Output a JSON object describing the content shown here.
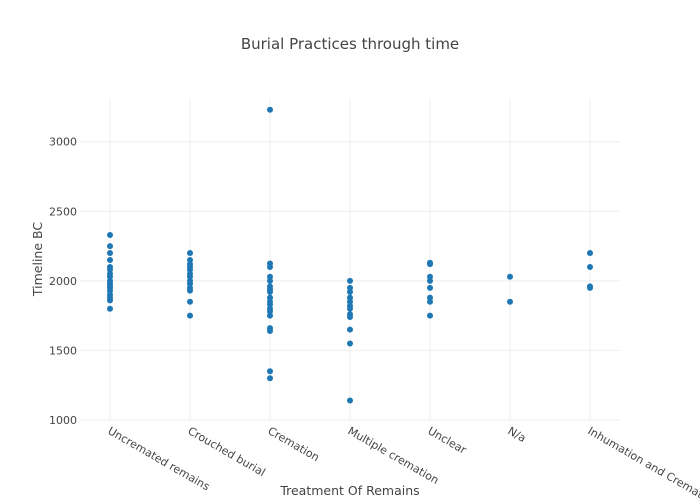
{
  "chart_data": {
    "type": "scatter",
    "title": "Burial Practices through time",
    "xlabel": "Treatment Of Remains",
    "ylabel": "Timeline BC",
    "categories": [
      "Uncremated remains",
      "Crouched burial",
      "Cremation",
      "Multiple cremation",
      "Unclear",
      "N/a",
      "Inhumation and Cremation"
    ],
    "ylim": [
      1000,
      3300
    ],
    "yticks": [
      1000,
      1500,
      2000,
      2500,
      3000
    ],
    "grid": true,
    "marker_color": "#1f77b4",
    "points": [
      {
        "x": "Uncremated remains",
        "y": 2330
      },
      {
        "x": "Uncremated remains",
        "y": 2250
      },
      {
        "x": "Uncremated remains",
        "y": 2200
      },
      {
        "x": "Uncremated remains",
        "y": 2150
      },
      {
        "x": "Uncremated remains",
        "y": 2100
      },
      {
        "x": "Uncremated remains",
        "y": 2080
      },
      {
        "x": "Uncremated remains",
        "y": 2050
      },
      {
        "x": "Uncremated remains",
        "y": 2030
      },
      {
        "x": "Uncremated remains",
        "y": 2000
      },
      {
        "x": "Uncremated remains",
        "y": 1980
      },
      {
        "x": "Uncremated remains",
        "y": 1960
      },
      {
        "x": "Uncremated remains",
        "y": 1950
      },
      {
        "x": "Uncremated remains",
        "y": 1930
      },
      {
        "x": "Uncremated remains",
        "y": 1900
      },
      {
        "x": "Uncremated remains",
        "y": 1880
      },
      {
        "x": "Uncremated remains",
        "y": 1860
      },
      {
        "x": "Uncremated remains",
        "y": 1800
      },
      {
        "x": "Crouched burial",
        "y": 2200
      },
      {
        "x": "Crouched burial",
        "y": 2150
      },
      {
        "x": "Crouched burial",
        "y": 2120
      },
      {
        "x": "Crouched burial",
        "y": 2100
      },
      {
        "x": "Crouched burial",
        "y": 2080
      },
      {
        "x": "Crouched burial",
        "y": 2050
      },
      {
        "x": "Crouched burial",
        "y": 2030
      },
      {
        "x": "Crouched burial",
        "y": 2000
      },
      {
        "x": "Crouched burial",
        "y": 1980
      },
      {
        "x": "Crouched burial",
        "y": 1950
      },
      {
        "x": "Crouched burial",
        "y": 1930
      },
      {
        "x": "Crouched burial",
        "y": 1850
      },
      {
        "x": "Crouched burial",
        "y": 1750
      },
      {
        "x": "Cremation",
        "y": 3230
      },
      {
        "x": "Cremation",
        "y": 2125
      },
      {
        "x": "Cremation",
        "y": 2100
      },
      {
        "x": "Cremation",
        "y": 2030
      },
      {
        "x": "Cremation",
        "y": 2000
      },
      {
        "x": "Cremation",
        "y": 1960
      },
      {
        "x": "Cremation",
        "y": 1940
      },
      {
        "x": "Cremation",
        "y": 1920
      },
      {
        "x": "Cremation",
        "y": 1880
      },
      {
        "x": "Cremation",
        "y": 1850
      },
      {
        "x": "Cremation",
        "y": 1830
      },
      {
        "x": "Cremation",
        "y": 1800
      },
      {
        "x": "Cremation",
        "y": 1780
      },
      {
        "x": "Cremation",
        "y": 1750
      },
      {
        "x": "Cremation",
        "y": 1660
      },
      {
        "x": "Cremation",
        "y": 1640
      },
      {
        "x": "Cremation",
        "y": 1350
      },
      {
        "x": "Cremation",
        "y": 1300
      },
      {
        "x": "Multiple cremation",
        "y": 2000
      },
      {
        "x": "Multiple cremation",
        "y": 1950
      },
      {
        "x": "Multiple cremation",
        "y": 1920
      },
      {
        "x": "Multiple cremation",
        "y": 1880
      },
      {
        "x": "Multiple cremation",
        "y": 1850
      },
      {
        "x": "Multiple cremation",
        "y": 1820
      },
      {
        "x": "Multiple cremation",
        "y": 1800
      },
      {
        "x": "Multiple cremation",
        "y": 1760
      },
      {
        "x": "Multiple cremation",
        "y": 1740
      },
      {
        "x": "Multiple cremation",
        "y": 1650
      },
      {
        "x": "Multiple cremation",
        "y": 1550
      },
      {
        "x": "Multiple cremation",
        "y": 1140
      },
      {
        "x": "Unclear",
        "y": 2130
      },
      {
        "x": "Unclear",
        "y": 2120
      },
      {
        "x": "Unclear",
        "y": 2030
      },
      {
        "x": "Unclear",
        "y": 2000
      },
      {
        "x": "Unclear",
        "y": 1950
      },
      {
        "x": "Unclear",
        "y": 1880
      },
      {
        "x": "Unclear",
        "y": 1850
      },
      {
        "x": "Unclear",
        "y": 1750
      },
      {
        "x": "N/a",
        "y": 2030
      },
      {
        "x": "N/a",
        "y": 1850
      },
      {
        "x": "Inhumation and Cremation",
        "y": 2200
      },
      {
        "x": "Inhumation and Cremation",
        "y": 2100
      },
      {
        "x": "Inhumation and Cremation",
        "y": 1960
      },
      {
        "x": "Inhumation and Cremation",
        "y": 1950
      }
    ]
  }
}
